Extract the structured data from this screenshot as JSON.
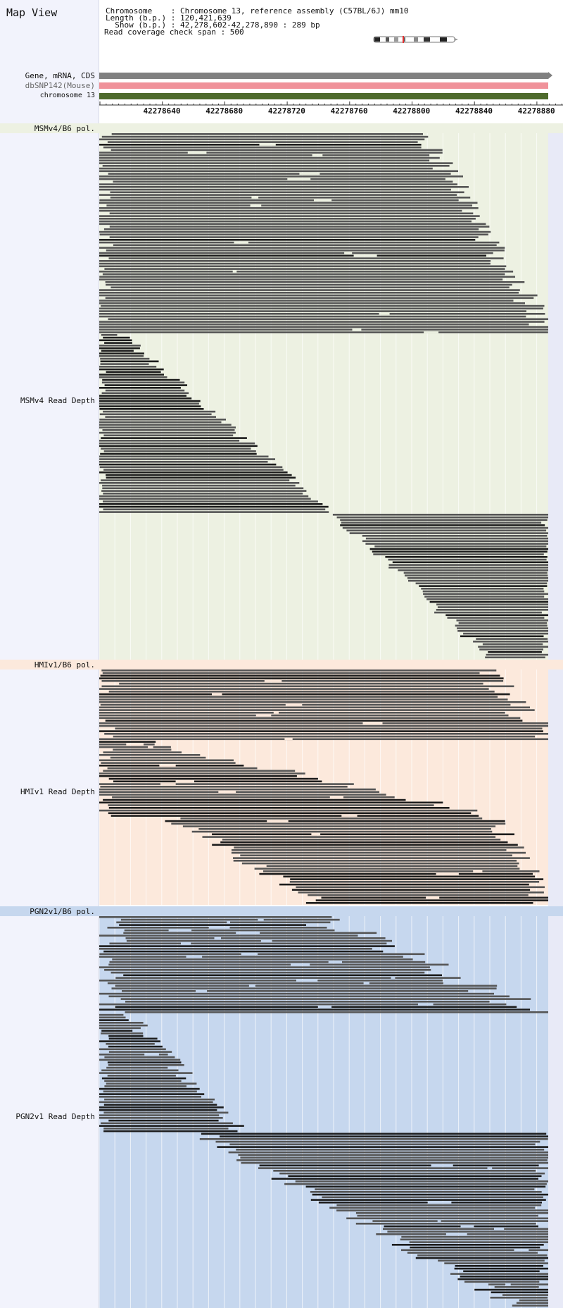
{
  "title": "Map View",
  "info": {
    "chromosome": "Chromosome    : Chromosome 13, reference assembly (C57BL/6J) mm10",
    "length": "Length (b.p.) : 120,421,639",
    "show": "  Show (b.p.) : 42,278,602-42,278,890 : 289 bp",
    "span": "Read coverage check span : 500"
  },
  "tracks": {
    "gene": "Gene, mRNA, CDS",
    "snp": "dbSNP142(Mouse)",
    "chromosome": "chromosome 13"
  },
  "ruler": {
    "ticks": [
      "42278640",
      "42278680",
      "42278720",
      "42278760",
      "42278800",
      "42278840",
      "42278880"
    ]
  },
  "sections": [
    {
      "pol_label": "MSMv4/B6 pol.",
      "depth_label": "MSMv4 Read Depth",
      "bg": "#edf1e2"
    },
    {
      "pol_label": "HMIv1/B6 pol.",
      "depth_label": "HMIv1 Read Depth",
      "bg": "#fce9dc"
    },
    {
      "pol_label": "PGN2v1/B6 pol.",
      "depth_label": "PGN2v1 Read Depth",
      "bg": "#c6d7ee"
    }
  ],
  "colors": {
    "read": "#555555",
    "read_dark": "#1c1c1c",
    "grid": "#ffffff",
    "snp_mark": "#e05050"
  }
}
